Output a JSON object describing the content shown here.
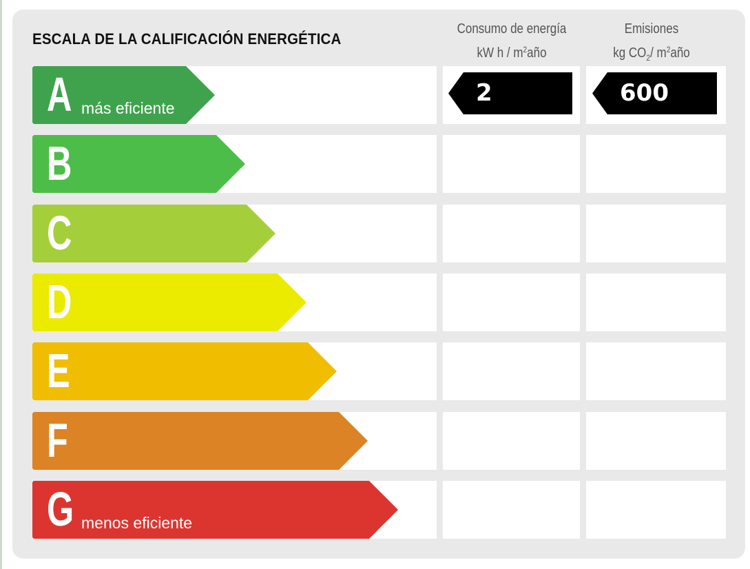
{
  "title": "ESCALA DE LA CALIFICACIÓN ENERGÉTICA",
  "columns": {
    "energy": {
      "line1": "Consumo de energía",
      "line2_pre": "kW h / m",
      "line2_sup": "2",
      "line2_post": "año"
    },
    "emissions": {
      "line1": "Emisiones",
      "line2_pre": "kg CO",
      "line2_sub": "2",
      "line2_mid": "/ m",
      "line2_sup": "2",
      "line2_post": "año"
    }
  },
  "ratings": [
    {
      "letter": "A",
      "description": "más eficiente",
      "color": "#3fa34d"
    },
    {
      "letter": "B",
      "description": "",
      "color": "#4dbd4a"
    },
    {
      "letter": "C",
      "description": "",
      "color": "#a5cf3a"
    },
    {
      "letter": "D",
      "description": "",
      "color": "#ebeb00"
    },
    {
      "letter": "E",
      "description": "",
      "color": "#f0bd00"
    },
    {
      "letter": "F",
      "description": "",
      "color": "#dc8325"
    },
    {
      "letter": "G",
      "description": "menos eficiente",
      "color": "#dc3530"
    }
  ],
  "values": {
    "energy": {
      "rating": "A",
      "value": "2"
    },
    "emissions": {
      "rating": "A",
      "value": "600"
    }
  }
}
